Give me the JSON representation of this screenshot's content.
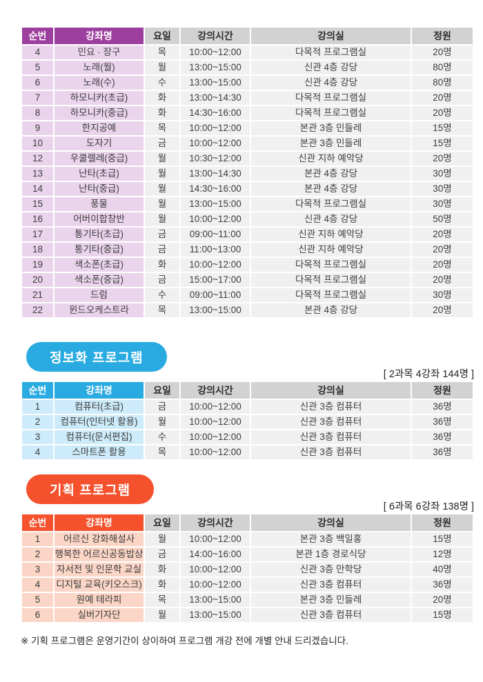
{
  "columns": {
    "labels": [
      "순번",
      "강좌명",
      "요일",
      "강의시간",
      "강의실",
      "정원"
    ]
  },
  "sections": {
    "general": {
      "theme_color": "#9c3f9e",
      "tint_color": "#ead4ec",
      "rows": [
        [
          "4",
          "민요 · 장구",
          "목",
          "10:00~12:00",
          "다목적 프로그램실",
          "20명"
        ],
        [
          "5",
          "노래(월)",
          "월",
          "13:00~15:00",
          "신관 4층 강당",
          "80명"
        ],
        [
          "6",
          "노래(수)",
          "수",
          "13:00~15:00",
          "신관 4층 강당",
          "80명"
        ],
        [
          "7",
          "하모니카(초급)",
          "화",
          "13:00~14:30",
          "다목적 프로그램실",
          "20명"
        ],
        [
          "8",
          "하모니카(중급)",
          "화",
          "14:30~16:00",
          "다목적 프로그램실",
          "20명"
        ],
        [
          "9",
          "한지공예",
          "목",
          "10:00~12:00",
          "본관 3층 민들레",
          "15명"
        ],
        [
          "10",
          "도자기",
          "금",
          "10:00~12:00",
          "본관 3층 민들레",
          "15명"
        ],
        [
          "12",
          "우쿨렐레(중급)",
          "월",
          "10:30~12:00",
          "신관 지하 예악당",
          "20명"
        ],
        [
          "13",
          "난타(초급)",
          "월",
          "13:00~14:30",
          "본관 4층 강당",
          "30명"
        ],
        [
          "14",
          "난타(중급)",
          "월",
          "14:30~16:00",
          "본관 4층 강당",
          "30명"
        ],
        [
          "15",
          "풍물",
          "월",
          "13:00~15:00",
          "다목적 프로그램실",
          "30명"
        ],
        [
          "16",
          "어버이합창반",
          "월",
          "10:00~12:00",
          "신관 4층 강당",
          "50명"
        ],
        [
          "17",
          "통기타(초급)",
          "금",
          "09:00~11:00",
          "신관 지하 예악당",
          "20명"
        ],
        [
          "18",
          "통기타(중급)",
          "금",
          "11:00~13:00",
          "신관 지하 예악당",
          "20명"
        ],
        [
          "19",
          "색소폰(초급)",
          "화",
          "10:00~12:00",
          "다목적 프로그램실",
          "20명"
        ],
        [
          "20",
          "색소폰(중급)",
          "금",
          "15:00~17:00",
          "다목적 프로그램실",
          "20명"
        ],
        [
          "21",
          "드럼",
          "수",
          "09:00~11:00",
          "다목적 프로그램실",
          "30명"
        ],
        [
          "22",
          "윈드오케스트라",
          "목",
          "13:00~15:00",
          "본관 4층 강당",
          "20명"
        ]
      ]
    },
    "info": {
      "badge": "정보화 프로그램",
      "caption": "[ 2과목 4강좌 144명 ]",
      "theme_color": "#29abe2",
      "tint_color": "#cdebfa",
      "rows": [
        [
          "1",
          "컴퓨터(초급)",
          "금",
          "10:00~12:00",
          "신관 3층 컴퓨터",
          "36명"
        ],
        [
          "2",
          "컴퓨터(인터넷 활용)",
          "월",
          "10:00~12:00",
          "신관 3층 컴퓨터",
          "36명"
        ],
        [
          "3",
          "컴퓨터(문서편집)",
          "수",
          "10:00~12:00",
          "신관 3층 컴퓨터",
          "36명"
        ],
        [
          "4",
          "스마트폰 활용",
          "목",
          "10:00~12:00",
          "신관 3층 컴퓨터",
          "36명"
        ]
      ]
    },
    "planning": {
      "badge": "기획 프로그램",
      "caption": "[ 6과목 6강좌 138명 ]",
      "theme_color": "#f4512c",
      "tint_color": "#fbd5c6",
      "rows": [
        [
          "1",
          "어르신 강화해설사",
          "월",
          "10:00~12:00",
          "본관 3층 백일홍",
          "15명"
        ],
        [
          "2",
          "행복한 어르신공동밥상",
          "금",
          "14:00~16:00",
          "본관 1층 경로식당",
          "12명"
        ],
        [
          "3",
          "자서전 및 인문학 교실",
          "화",
          "10:00~12:00",
          "신관 3층 만학당",
          "40명"
        ],
        [
          "4",
          "디지털 교육(키오스크)",
          "화",
          "10:00~12:00",
          "신관 3층 컴퓨터",
          "36명"
        ],
        [
          "5",
          "원예 테라피",
          "목",
          "13:00~15:00",
          "본관 3층 민들레",
          "20명"
        ],
        [
          "6",
          "실버기자단",
          "월",
          "13:00~15:00",
          "신관 3층 컴퓨터",
          "15명"
        ]
      ]
    }
  },
  "footnote": "※ 기획 프로그램은 운영기간이 상이하여 프로그램 개강 전에 개별 안내 드리겠습니다.",
  "header_gray_color": "#d2d2d2",
  "cell_gray_color": "#f0f0f0"
}
